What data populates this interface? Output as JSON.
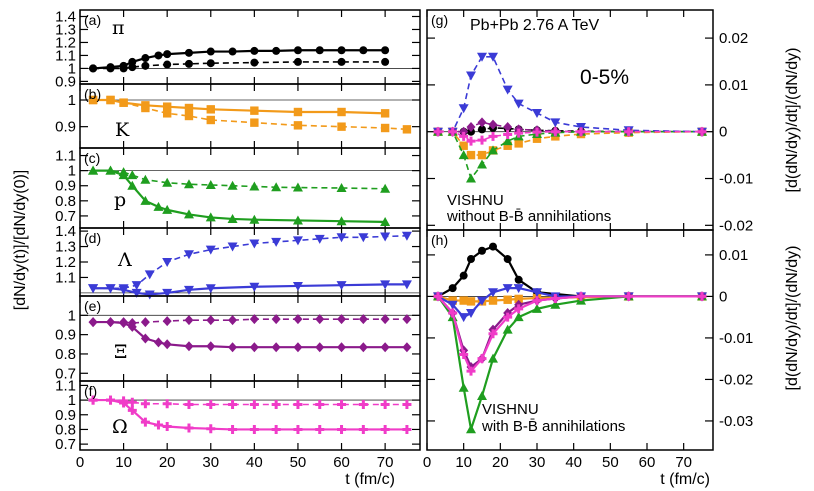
{
  "figure": {
    "y_label_left": "[dN/dy(t)]/[dN/dy(0)]",
    "y_label_right_top": "[d(dN/dy)/dt]/(dN/dy)",
    "y_label_right_bottom": "[d(dN/dy)/dt]/(dN/dy)",
    "x_label_left": "t (fm/c)",
    "x_label_right": "t (fm/c)",
    "annotation_collision": "Pb+Pb 2.76 A TeV",
    "annotation_centrality": "0-5%",
    "annotation_g_line1": "VISHNU",
    "annotation_g_line2": "without B-B̄ annihilations",
    "annotation_h_line1": "VISHNU",
    "annotation_h_line2": "with B-B̄ annihilations",
    "colors": {
      "pi": "#000000",
      "K": "#f29a1a",
      "p": "#1f9e1f",
      "Lambda": "#3b3bd6",
      "Xi": "#8b1a8b",
      "Omega": "#f03cc8"
    }
  },
  "chart_data": [
    {
      "id": "a",
      "type": "line",
      "letter": "(a)",
      "particle": "π",
      "color_key": "pi",
      "marker": "circle",
      "ylim": [
        0.88,
        1.45
      ],
      "yticks": [
        0.9,
        1,
        1.1,
        1.2,
        1.3,
        1.4
      ],
      "xlim": [
        0,
        78
      ],
      "series": [
        {
          "name": "with annihilations",
          "style": "solid",
          "x": [
            3,
            7,
            10,
            12,
            15,
            18,
            20,
            25,
            30,
            35,
            40,
            45,
            50,
            55,
            60,
            65,
            70
          ],
          "y": [
            1.0,
            1.01,
            1.02,
            1.05,
            1.08,
            1.1,
            1.11,
            1.12,
            1.13,
            1.13,
            1.135,
            1.135,
            1.14,
            1.14,
            1.14,
            1.14,
            1.14
          ]
        },
        {
          "name": "without annihilations",
          "style": "dashed",
          "x": [
            3,
            7,
            10,
            12,
            15,
            20,
            25,
            30,
            40,
            50,
            60,
            70
          ],
          "y": [
            1.0,
            1.0,
            1.0,
            1.01,
            1.02,
            1.03,
            1.035,
            1.04,
            1.045,
            1.05,
            1.05,
            1.05
          ]
        }
      ]
    },
    {
      "id": "b",
      "type": "line",
      "letter": "(b)",
      "particle": "K",
      "color_key": "K",
      "marker": "square",
      "ylim": [
        0.82,
        1.06
      ],
      "yticks": [
        0.9,
        1
      ],
      "xlim": [
        0,
        78
      ],
      "series": [
        {
          "name": "with annihilations",
          "style": "solid",
          "x": [
            3,
            7,
            10,
            15,
            20,
            25,
            30,
            40,
            50,
            60,
            70
          ],
          "y": [
            1.0,
            1.0,
            0.99,
            0.98,
            0.975,
            0.97,
            0.965,
            0.96,
            0.955,
            0.955,
            0.95
          ]
        },
        {
          "name": "without annihilations",
          "style": "dashed",
          "x": [
            3,
            7,
            10,
            15,
            20,
            25,
            30,
            40,
            50,
            60,
            70,
            75
          ],
          "y": [
            1.0,
            1.0,
            0.99,
            0.97,
            0.95,
            0.94,
            0.925,
            0.915,
            0.905,
            0.9,
            0.895,
            0.89
          ]
        }
      ]
    },
    {
      "id": "c",
      "type": "line",
      "letter": "(c)",
      "particle": "p",
      "color_key": "p",
      "marker": "triangle-up",
      "ylim": [
        0.62,
        1.15
      ],
      "yticks": [
        0.7,
        0.8,
        0.9,
        1,
        1.1
      ],
      "xlim": [
        0,
        78
      ],
      "series": [
        {
          "name": "without annihilations",
          "style": "dashed",
          "x": [
            3,
            7,
            10,
            12,
            15,
            20,
            25,
            30,
            35,
            40,
            45,
            50,
            60,
            70
          ],
          "y": [
            1.0,
            1.0,
            0.99,
            0.97,
            0.94,
            0.92,
            0.91,
            0.905,
            0.9,
            0.895,
            0.89,
            0.888,
            0.885,
            0.88
          ]
        },
        {
          "name": "with annihilations",
          "style": "solid",
          "x": [
            3,
            7,
            10,
            12,
            15,
            18,
            20,
            25,
            30,
            35,
            40,
            50,
            60,
            70
          ],
          "y": [
            1.0,
            1.0,
            0.97,
            0.9,
            0.8,
            0.76,
            0.74,
            0.71,
            0.69,
            0.68,
            0.675,
            0.67,
            0.665,
            0.66
          ]
        }
      ]
    },
    {
      "id": "d",
      "type": "line",
      "letter": "(d)",
      "particle": "Λ",
      "color_key": "Lambda",
      "marker": "triangle-down",
      "ylim": [
        0.98,
        1.42
      ],
      "yticks": [
        1.1,
        1.2,
        1.3,
        1.4
      ],
      "xlim": [
        0,
        78
      ],
      "series": [
        {
          "name": "without annihilations",
          "style": "dashed",
          "x": [
            3,
            7,
            10,
            13,
            16,
            20,
            25,
            30,
            35,
            40,
            45,
            50,
            55,
            60,
            65,
            70,
            75
          ],
          "y": [
            1.03,
            1.03,
            1.03,
            1.05,
            1.12,
            1.2,
            1.25,
            1.28,
            1.3,
            1.32,
            1.33,
            1.34,
            1.35,
            1.36,
            1.36,
            1.365,
            1.37
          ]
        },
        {
          "name": "with annihilations",
          "style": "solid",
          "x": [
            3,
            7,
            10,
            13,
            16,
            20,
            25,
            30,
            40,
            50,
            60,
            70,
            75
          ],
          "y": [
            1.03,
            1.03,
            1.02,
            1.0,
            0.99,
            1.0,
            1.02,
            1.03,
            1.04,
            1.045,
            1.05,
            1.055,
            1.055
          ]
        }
      ]
    },
    {
      "id": "e",
      "type": "line",
      "letter": "(e)",
      "particle": "Ξ",
      "color_key": "Xi",
      "marker": "diamond",
      "ylim": [
        0.66,
        1.1
      ],
      "yticks": [
        0.7,
        0.8,
        0.9,
        1
      ],
      "xlim": [
        0,
        78
      ],
      "series": [
        {
          "name": "without annihilations",
          "style": "dashed",
          "x": [
            3,
            7,
            10,
            12,
            15,
            20,
            25,
            30,
            35,
            40,
            45,
            50,
            55,
            60,
            65,
            70,
            75
          ],
          "y": [
            0.965,
            0.965,
            0.965,
            0.96,
            0.965,
            0.97,
            0.975,
            0.975,
            0.975,
            0.98,
            0.98,
            0.98,
            0.98,
            0.98,
            0.98,
            0.98,
            0.98
          ]
        },
        {
          "name": "with annihilations",
          "style": "solid",
          "x": [
            3,
            7,
            10,
            12,
            15,
            18,
            20,
            25,
            30,
            35,
            40,
            45,
            50,
            55,
            60,
            65,
            70,
            75
          ],
          "y": [
            0.965,
            0.965,
            0.96,
            0.94,
            0.88,
            0.86,
            0.85,
            0.84,
            0.84,
            0.835,
            0.835,
            0.835,
            0.835,
            0.835,
            0.835,
            0.835,
            0.835,
            0.835
          ]
        }
      ]
    },
    {
      "id": "f",
      "type": "line",
      "letter": "(f)",
      "particle": "Ω",
      "color_key": "Omega",
      "marker": "plus",
      "ylim": [
        0.66,
        1.13
      ],
      "yticks": [
        0.7,
        0.8,
        0.9,
        1,
        1.1
      ],
      "xlim": [
        0,
        78
      ],
      "series": [
        {
          "name": "without annihilations",
          "style": "dashed",
          "x": [
            3,
            7,
            10,
            12,
            15,
            20,
            25,
            30,
            35,
            40,
            45,
            50,
            55,
            60,
            65,
            70,
            75
          ],
          "y": [
            1.0,
            1.0,
            0.995,
            0.985,
            0.975,
            0.975,
            0.97,
            0.97,
            0.97,
            0.97,
            0.97,
            0.97,
            0.97,
            0.97,
            0.97,
            0.97,
            0.97
          ]
        },
        {
          "name": "with annihilations",
          "style": "solid",
          "x": [
            3,
            7,
            10,
            12,
            15,
            18,
            20,
            25,
            30,
            35,
            40,
            45,
            50,
            55,
            60,
            65,
            70,
            75
          ],
          "y": [
            1.0,
            1.0,
            0.98,
            0.93,
            0.85,
            0.83,
            0.82,
            0.81,
            0.805,
            0.8,
            0.8,
            0.8,
            0.8,
            0.8,
            0.8,
            0.8,
            0.8,
            0.8
          ]
        }
      ]
    },
    {
      "id": "g",
      "type": "line",
      "letter": "(g)",
      "ylim": [
        -0.021,
        0.026
      ],
      "yticks": [
        -0.02,
        -0.01,
        0,
        0.01,
        0.02
      ],
      "xlim": [
        0,
        78
      ],
      "series": [
        {
          "name": "π",
          "color_key": "pi",
          "marker": "circle",
          "style": "dashed",
          "x": [
            3,
            7,
            10,
            12,
            15,
            18,
            22,
            25,
            30,
            35,
            42,
            55,
            75
          ],
          "y": [
            0,
            0,
            0,
            0,
            0.0005,
            0.0008,
            0.0007,
            0.0005,
            0.0003,
            0.0002,
            0.0001,
            0,
            0
          ]
        },
        {
          "name": "K",
          "color_key": "K",
          "marker": "square",
          "style": "dashed",
          "x": [
            3,
            7,
            10,
            12,
            15,
            18,
            22,
            25,
            30,
            35,
            42,
            55,
            75
          ],
          "y": [
            0,
            0,
            -0.003,
            -0.005,
            -0.005,
            -0.004,
            -0.003,
            -0.0025,
            -0.0015,
            -0.001,
            -0.0005,
            -0.0002,
            0
          ]
        },
        {
          "name": "p",
          "color_key": "p",
          "marker": "triangle-up",
          "style": "dashed",
          "x": [
            3,
            7,
            10,
            12,
            15,
            18,
            22,
            25,
            30,
            35,
            42,
            55,
            75
          ],
          "y": [
            0,
            0,
            -0.005,
            -0.01,
            -0.007,
            -0.004,
            -0.002,
            -0.001,
            -0.0005,
            -0.0002,
            0,
            0,
            0
          ]
        },
        {
          "name": "Λ",
          "color_key": "Lambda",
          "marker": "triangle-down",
          "style": "dashed",
          "x": [
            3,
            7,
            10,
            12,
            15,
            18,
            22,
            25,
            30,
            35,
            42,
            55,
            75
          ],
          "y": [
            0,
            0,
            0.005,
            0.012,
            0.016,
            0.016,
            0.009,
            0.006,
            0.004,
            0.002,
            0.001,
            0.0003,
            0
          ]
        },
        {
          "name": "Ξ",
          "color_key": "Xi",
          "marker": "diamond",
          "style": "dashed",
          "x": [
            3,
            7,
            10,
            12,
            15,
            18,
            22,
            25,
            30,
            35,
            42,
            55,
            75
          ],
          "y": [
            0,
            0,
            0,
            0.001,
            0.002,
            0.0015,
            0.001,
            0.0005,
            0.0003,
            0.0001,
            0,
            0,
            0
          ]
        },
        {
          "name": "Ω",
          "color_key": "Omega",
          "marker": "plus",
          "style": "dashed",
          "x": [
            3,
            7,
            10,
            12,
            15,
            18,
            22,
            25,
            30,
            35,
            42,
            55,
            75
          ],
          "y": [
            0,
            0,
            -0.001,
            -0.002,
            -0.0018,
            -0.001,
            -0.0006,
            -0.0003,
            -0.0001,
            0,
            0,
            0,
            0
          ]
        }
      ]
    },
    {
      "id": "h",
      "type": "line",
      "letter": "(h)",
      "ylim": [
        -0.037,
        0.016
      ],
      "yticks": [
        -0.03,
        -0.02,
        -0.01,
        0,
        0.01
      ],
      "xlim": [
        0,
        78
      ],
      "series": [
        {
          "name": "π",
          "color_key": "pi",
          "marker": "circle",
          "style": "solid",
          "x": [
            3,
            7,
            10,
            12,
            15,
            18,
            22,
            25,
            30,
            42,
            55,
            75
          ],
          "y": [
            0,
            0.002,
            0.005,
            0.009,
            0.011,
            0.012,
            0.009,
            0.004,
            0.001,
            0,
            0,
            0
          ]
        },
        {
          "name": "K",
          "color_key": "K",
          "marker": "square",
          "style": "solid",
          "x": [
            3,
            7,
            10,
            12,
            15,
            18,
            22,
            25,
            30,
            42,
            55,
            75
          ],
          "y": [
            0,
            -0.001,
            -0.001,
            -0.0012,
            -0.0012,
            -0.001,
            -0.0008,
            -0.0006,
            -0.0004,
            -0.0002,
            0,
            0
          ]
        },
        {
          "name": "p",
          "color_key": "p",
          "marker": "triangle-up",
          "style": "solid",
          "x": [
            3,
            7,
            10,
            12,
            15,
            18,
            22,
            25,
            30,
            35,
            42,
            55,
            75
          ],
          "y": [
            0,
            -0.005,
            -0.022,
            -0.032,
            -0.024,
            -0.015,
            -0.008,
            -0.005,
            -0.003,
            -0.002,
            -0.001,
            0,
            0
          ]
        },
        {
          "name": "Λ",
          "color_key": "Lambda",
          "marker": "triangle-down",
          "style": "solid",
          "x": [
            3,
            7,
            10,
            12,
            15,
            18,
            22,
            25,
            30,
            35,
            42,
            55,
            75
          ],
          "y": [
            0,
            -0.002,
            -0.005,
            -0.004,
            -0.001,
            0.001,
            0.002,
            0.002,
            0.001,
            0,
            0,
            0,
            0
          ]
        },
        {
          "name": "Ξ",
          "color_key": "Xi",
          "marker": "diamond",
          "style": "solid",
          "x": [
            3,
            7,
            10,
            12,
            15,
            18,
            22,
            25,
            30,
            35,
            42,
            55,
            75
          ],
          "y": [
            0,
            -0.004,
            -0.013,
            -0.017,
            -0.015,
            -0.008,
            -0.004,
            -0.002,
            -0.001,
            -0.0005,
            0,
            0,
            0
          ]
        },
        {
          "name": "Ω",
          "color_key": "Omega",
          "marker": "plus",
          "style": "solid",
          "x": [
            3,
            7,
            10,
            12,
            15,
            18,
            22,
            25,
            30,
            35,
            42,
            55,
            75
          ],
          "y": [
            0,
            -0.004,
            -0.014,
            -0.018,
            -0.015,
            -0.009,
            -0.005,
            -0.003,
            -0.001,
            -0.0005,
            0,
            0,
            0
          ]
        }
      ]
    }
  ]
}
